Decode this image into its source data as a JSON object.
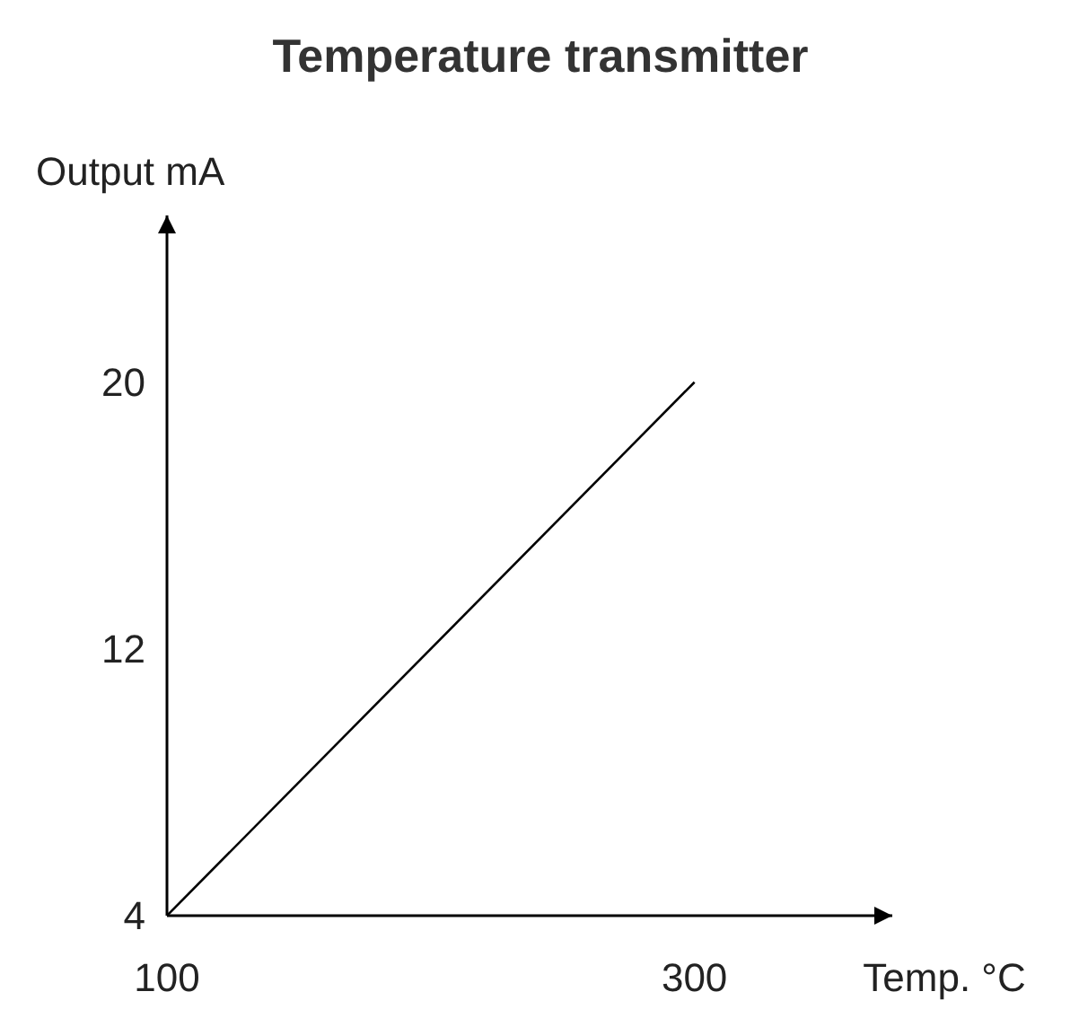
{
  "chart_data": {
    "type": "line",
    "title": "Temperature transmitter",
    "xlabel": "Temp. °C",
    "ylabel": "Output mA",
    "x": [
      100,
      300
    ],
    "series": [
      {
        "color": "#000000",
        "values": [
          4,
          20
        ]
      }
    ],
    "xlim": [
      100,
      375
    ],
    "ylim": [
      4,
      25
    ],
    "xticks": [
      100,
      300
    ],
    "yticks": [
      4,
      12,
      20
    ],
    "grid": false,
    "marker": "none",
    "line_style": "solid"
  }
}
